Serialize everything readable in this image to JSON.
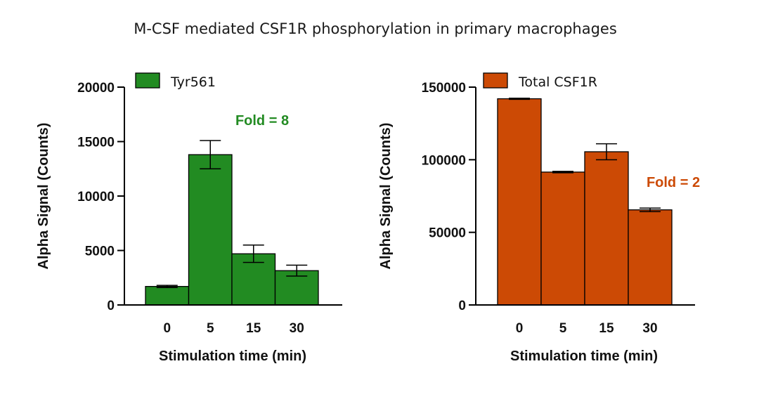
{
  "figure_title": "M-CSF mediated CSF1R phosphorylation in primary macrophages",
  "chart_data": [
    {
      "type": "bar",
      "xlabel": "Stimulation time (min)",
      "ylabel": "Alpha Signal (Counts)",
      "categories": [
        "0",
        "5",
        "15",
        "30"
      ],
      "ylim": [
        0,
        20000
      ],
      "yticks": [
        0,
        5000,
        10000,
        15000,
        20000
      ],
      "series": [
        {
          "name": "Tyr561",
          "color": "#228B22",
          "values": [
            1700,
            13800,
            4700,
            3150
          ],
          "errors": [
            100,
            1300,
            800,
            500
          ]
        }
      ],
      "annotation": {
        "text": "Fold = 8",
        "color": "#228B22"
      },
      "legend": "top-left",
      "grid": false
    },
    {
      "type": "bar",
      "xlabel": "Stimulation time (min)",
      "ylabel": "Alpha Signal (Counts)",
      "categories": [
        "0",
        "5",
        "15",
        "30"
      ],
      "ylim": [
        0,
        150000
      ],
      "yticks": [
        0,
        50000,
        100000,
        150000
      ],
      "series": [
        {
          "name": "Total CSF1R",
          "color": "#CC4A05",
          "values": [
            142000,
            91500,
            105500,
            65500
          ],
          "errors": [
            400,
            500,
            5500,
            1200
          ]
        }
      ],
      "annotation": {
        "text": "Fold = 2",
        "color": "#CC4A05"
      },
      "legend": "top-left",
      "grid": false
    }
  ]
}
